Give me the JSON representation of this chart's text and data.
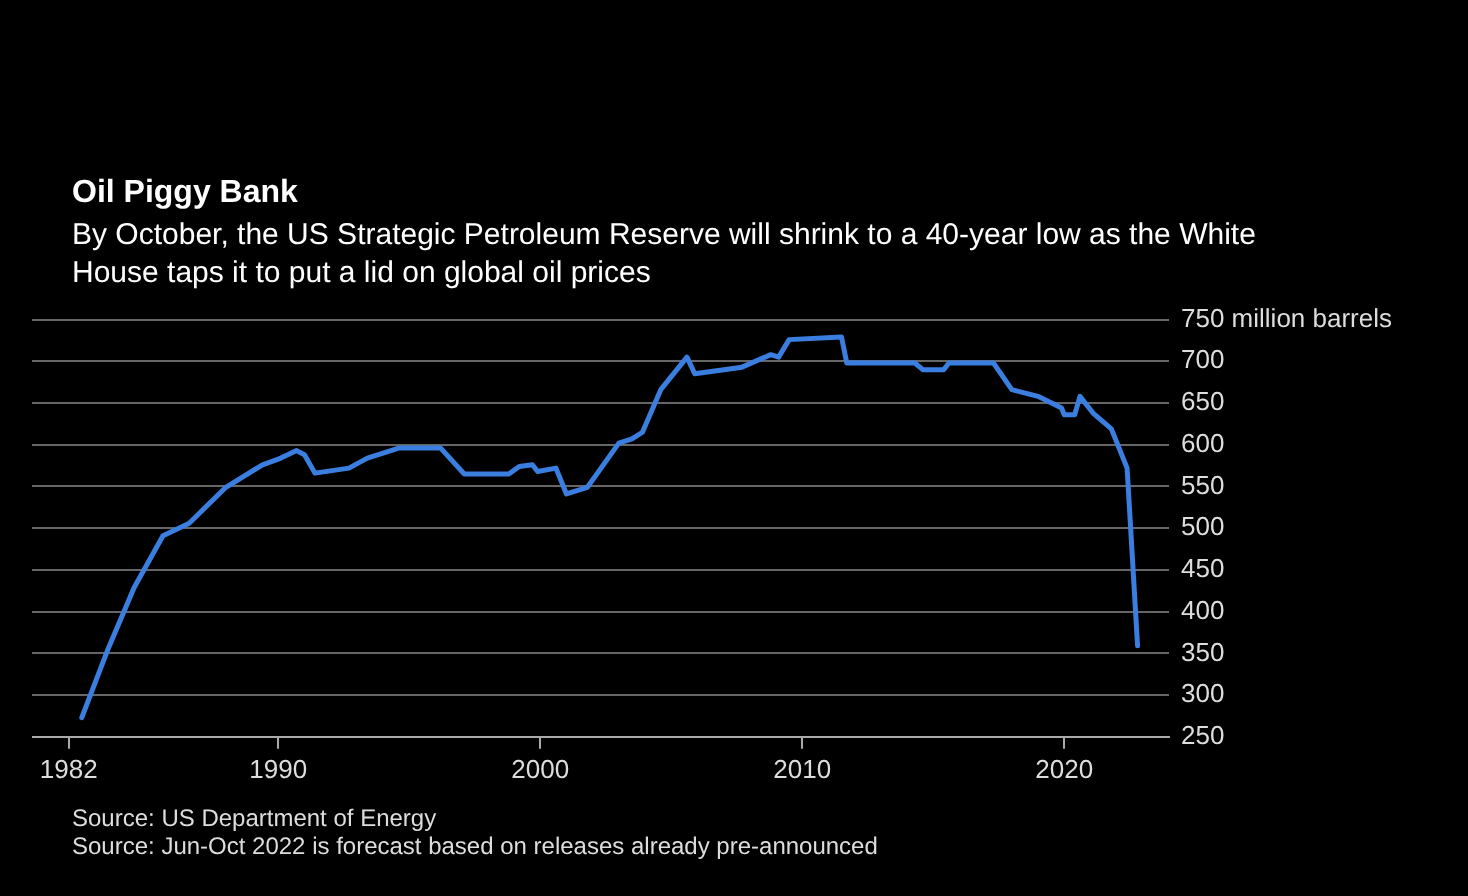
{
  "chart_data": {
    "type": "line",
    "title": "Oil Piggy Bank",
    "subtitle": "By October, the US Strategic Petroleum Reserve will shrink to a 40-year low as the White House taps it to put a lid on global oil prices",
    "x": [
      1982.5,
      1983.5,
      1984.5,
      1985.6,
      1986.6,
      1988.0,
      1989.4,
      1990.1,
      1990.7,
      1991.0,
      1991.4,
      1992.7,
      1993.4,
      1994.6,
      1996.2,
      1997.1,
      1998.8,
      1999.2,
      1999.7,
      1999.9,
      2000.6,
      2001.0,
      2001.8,
      2003.0,
      2003.5,
      2003.9,
      2004.6,
      2005.6,
      2005.9,
      2007.7,
      2008.8,
      2009.1,
      2009.5,
      2011.5,
      2011.7,
      2014.3,
      2014.6,
      2015.4,
      2015.6,
      2017.3,
      2018.0,
      2019.0,
      2019.9,
      2020.0,
      2020.4,
      2020.6,
      2021.1,
      2021.8,
      2022.4,
      2022.8
    ],
    "series": [
      {
        "color": "#3a7ee0",
        "values": [
          273,
          355,
          429,
          491,
          506,
          549,
          576,
          584,
          593,
          588,
          566,
          572,
          584,
          596,
          596,
          565,
          565,
          574,
          576,
          568,
          572,
          541,
          549,
          602,
          607,
          615,
          666,
          705,
          685,
          693,
          708,
          705,
          726,
          729,
          698,
          698,
          690,
          690,
          698,
          698,
          666,
          658,
          644,
          636,
          636,
          658,
          638,
          619,
          572,
          359
        ]
      }
    ],
    "xlim": [
      1980.6,
      2024
    ],
    "xticks": [
      1982,
      1990,
      2000,
      2010,
      2020
    ],
    "ylim": [
      250,
      750
    ],
    "yticks": [
      250,
      300,
      350,
      400,
      450,
      500,
      550,
      600,
      650,
      700,
      {
        "value": 750,
        "label": "750 million barrels"
      }
    ],
    "grid": "y",
    "legend": false,
    "marker": "none",
    "line_style": "solid",
    "annotations": [
      "Source: US Department of Energy",
      "Source: Jun-Oct 2022 is forecast based on releases already pre-announced"
    ]
  }
}
